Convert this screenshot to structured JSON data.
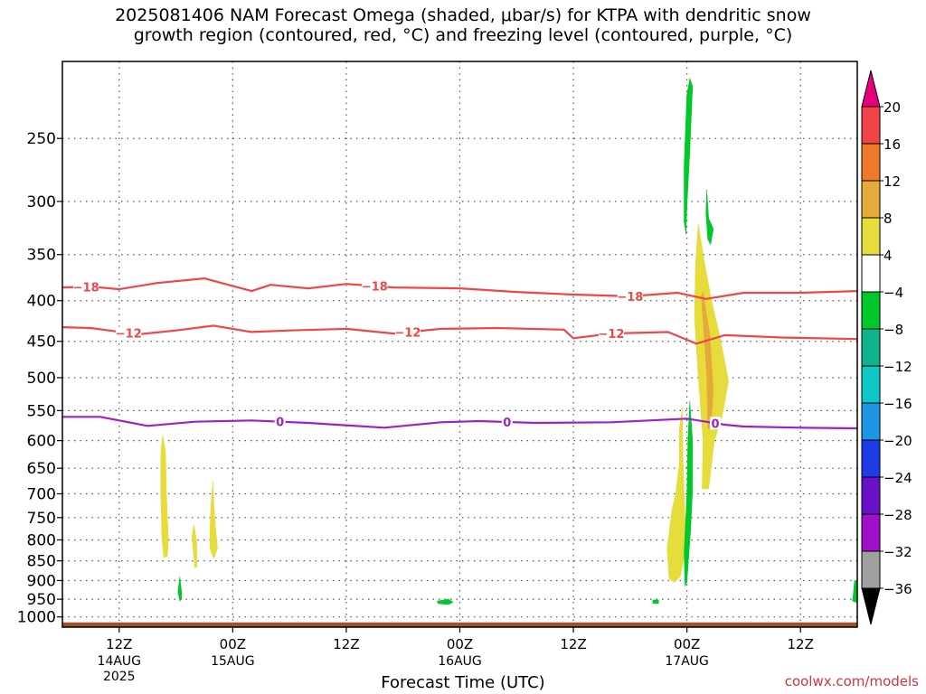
{
  "title": {
    "line1": "2025081406 NAM Forecast Omega (shaded, μbar/s) for KTPA with dendritic snow",
    "line2": "growth region (contoured, red, °C) and freezing level (contoured, purple, °C)"
  },
  "credit": "coolwx.com/models",
  "chart_data": {
    "type": "heatmap",
    "xlabel": "Forecast Time (UTC)",
    "x_unit": "forecast hour from 2025-08-14 06Z",
    "xlim": [
      0,
      84
    ],
    "x_ticks": [
      {
        "hour": 6,
        "label": "12Z",
        "sub": "14AUG",
        "sub2": "2025"
      },
      {
        "hour": 18,
        "label": "00Z",
        "sub": "15AUG",
        "sub2": ""
      },
      {
        "hour": 30,
        "label": "12Z",
        "sub": "",
        "sub2": ""
      },
      {
        "hour": 42,
        "label": "00Z",
        "sub": "16AUG",
        "sub2": ""
      },
      {
        "hour": 54,
        "label": "12Z",
        "sub": "",
        "sub2": ""
      },
      {
        "hour": 66,
        "label": "00Z",
        "sub": "17AUG",
        "sub2": ""
      },
      {
        "hour": 78,
        "label": "12Z",
        "sub": "",
        "sub2": ""
      }
    ],
    "ylabel": "",
    "y_unit": "hPa",
    "y_scale": "log",
    "ylim": [
      1030,
      200
    ],
    "y_ticks": [
      250,
      300,
      350,
      400,
      450,
      500,
      550,
      600,
      650,
      700,
      750,
      800,
      850,
      900,
      950,
      1000
    ],
    "grid": true,
    "colorbar": {
      "levels": [
        "20",
        "16",
        "12",
        "8",
        "4",
        "−4",
        "−8",
        "−12",
        "−16",
        "−20",
        "−24",
        "−28",
        "−32",
        "−36"
      ],
      "colors": [
        "#e6007e",
        "#f2424a",
        "#f07a2a",
        "#e6aa3a",
        "#e6dc3c",
        "#ffffff",
        "#00c82a",
        "#10b48c",
        "#0ec8c8",
        "#1e96e6",
        "#1e3ce6",
        "#6a10c8",
        "#a010c8",
        "#a0a0a0",
        "#000000"
      ]
    },
    "contours": [
      {
        "color": "#f04646",
        "label": "−18",
        "label_x": [
          2.5,
          33,
          60
        ],
        "points": [
          [
            0,
            385
          ],
          [
            3,
            384
          ],
          [
            6,
            387
          ],
          [
            10,
            380
          ],
          [
            15,
            375
          ],
          [
            20,
            389
          ],
          [
            22,
            382
          ],
          [
            26,
            386
          ],
          [
            30,
            381
          ],
          [
            35,
            385
          ],
          [
            42,
            386
          ],
          [
            48,
            390
          ],
          [
            54,
            393
          ],
          [
            60,
            395
          ],
          [
            65,
            391
          ],
          [
            68,
            398
          ],
          [
            72,
            391
          ],
          [
            78,
            391
          ],
          [
            84,
            389
          ]
        ]
      },
      {
        "color": "#f04646",
        "label": "−12",
        "label_x": [
          7,
          36.5,
          58
        ],
        "points": [
          [
            0,
            432
          ],
          [
            3,
            433
          ],
          [
            8,
            441
          ],
          [
            12,
            436
          ],
          [
            16,
            430
          ],
          [
            20,
            438
          ],
          [
            24,
            436
          ],
          [
            30,
            434
          ],
          [
            35,
            440
          ],
          [
            40,
            434
          ],
          [
            46,
            433
          ],
          [
            53,
            435
          ],
          [
            54,
            446
          ],
          [
            58,
            440
          ],
          [
            64,
            438
          ],
          [
            67,
            453
          ],
          [
            70,
            442
          ],
          [
            76,
            445
          ],
          [
            84,
            447
          ]
        ]
      },
      {
        "color": "#a020c8",
        "label": "0",
        "label_x": [
          23,
          47,
          69
        ],
        "points": [
          [
            0,
            560
          ],
          [
            4,
            560
          ],
          [
            9,
            575
          ],
          [
            14,
            568
          ],
          [
            20,
            566
          ],
          [
            26,
            570
          ],
          [
            34,
            578
          ],
          [
            40,
            569
          ],
          [
            44,
            567
          ],
          [
            50,
            570
          ],
          [
            58,
            569
          ],
          [
            66,
            563
          ],
          [
            70,
            573
          ],
          [
            72,
            576
          ],
          [
            78,
            578
          ],
          [
            84,
            579
          ]
        ]
      }
    ],
    "shaded_regions": [
      {
        "color": "#e6dc3c",
        "points": [
          [
            10.6,
            590
          ],
          [
            10.9,
            620
          ],
          [
            11.0,
            700
          ],
          [
            11.2,
            795
          ],
          [
            11.1,
            838
          ],
          [
            10.7,
            842
          ],
          [
            10.5,
            790
          ],
          [
            10.4,
            700
          ],
          [
            10.4,
            620
          ]
        ]
      },
      {
        "color": "#e6dc3c",
        "points": [
          [
            13.9,
            765
          ],
          [
            14.2,
            805
          ],
          [
            14.2,
            865
          ],
          [
            14.0,
            868
          ],
          [
            13.8,
            820
          ],
          [
            13.7,
            790
          ]
        ]
      },
      {
        "color": "#e6dc3c",
        "points": [
          [
            15.9,
            675
          ],
          [
            16.0,
            720
          ],
          [
            16.2,
            775
          ],
          [
            16.4,
            820
          ],
          [
            16.0,
            845
          ],
          [
            15.6,
            820
          ],
          [
            15.6,
            775
          ],
          [
            15.7,
            720
          ]
        ]
      },
      {
        "color": "#e6dc3c",
        "points": [
          [
            65.5,
            545
          ],
          [
            65.6,
            640
          ],
          [
            65.9,
            820
          ],
          [
            65.3,
            890
          ],
          [
            64.7,
            905
          ],
          [
            64.1,
            895
          ],
          [
            63.9,
            820
          ],
          [
            64.4,
            735
          ],
          [
            64.8,
            700
          ],
          [
            65.2,
            640
          ],
          [
            65.2,
            580
          ]
        ]
      },
      {
        "color": "#e6dc3c",
        "points": [
          [
            67.2,
            320
          ],
          [
            67.8,
            355
          ],
          [
            68.6,
            400
          ],
          [
            69.5,
            445
          ],
          [
            70.4,
            505
          ],
          [
            69.7,
            560
          ],
          [
            68.9,
            600
          ],
          [
            68.3,
            690
          ],
          [
            67.6,
            690
          ],
          [
            67.7,
            600
          ],
          [
            67.2,
            500
          ],
          [
            66.8,
            420
          ],
          [
            66.9,
            360
          ]
        ]
      },
      {
        "color": "#e6aa3a",
        "points": [
          [
            67.7,
            390
          ],
          [
            68.4,
            440
          ],
          [
            68.8,
            520
          ],
          [
            68.5,
            580
          ],
          [
            68.2,
            580
          ],
          [
            68.1,
            500
          ],
          [
            67.8,
            440
          ],
          [
            67.5,
            395
          ]
        ]
      },
      {
        "color": "#00c82a",
        "points": [
          [
            66.3,
            210
          ],
          [
            66.6,
            215
          ],
          [
            66.3,
            260
          ],
          [
            66.0,
            305
          ],
          [
            65.9,
            330
          ],
          [
            65.7,
            318
          ],
          [
            65.7,
            270
          ],
          [
            66.0,
            220
          ]
        ]
      },
      {
        "color": "#00c82a",
        "points": [
          [
            68.1,
            290
          ],
          [
            68.3,
            315
          ],
          [
            68.8,
            325
          ],
          [
            68.5,
            340
          ],
          [
            68.2,
            335
          ],
          [
            68.0,
            310
          ]
        ]
      },
      {
        "color": "#00c82a",
        "points": [
          [
            66.3,
            535
          ],
          [
            66.6,
            600
          ],
          [
            66.6,
            690
          ],
          [
            66.4,
            775
          ],
          [
            66.0,
            905
          ],
          [
            65.8,
            915
          ],
          [
            65.7,
            830
          ],
          [
            66.0,
            700
          ],
          [
            66.1,
            600
          ]
        ]
      },
      {
        "color": "#00c82a",
        "points": [
          [
            12.4,
            890
          ],
          [
            12.6,
            930
          ],
          [
            12.6,
            950
          ],
          [
            12.4,
            955
          ],
          [
            12.2,
            930
          ]
        ]
      },
      {
        "color": "#00c82a",
        "points": [
          [
            39.6,
            955
          ],
          [
            40.8,
            950
          ],
          [
            41.3,
            958
          ],
          [
            40.8,
            965
          ],
          [
            39.7,
            962
          ]
        ]
      },
      {
        "color": "#00c82a",
        "points": [
          [
            62.4,
            952
          ],
          [
            63.0,
            952
          ],
          [
            63.0,
            962
          ],
          [
            62.4,
            962
          ]
        ]
      },
      {
        "color": "#00c82a",
        "points": [
          [
            83.7,
            900
          ],
          [
            84,
            900
          ],
          [
            84,
            960
          ],
          [
            83.5,
            955
          ],
          [
            83.6,
            930
          ]
        ]
      }
    ],
    "ground": {
      "color": "#a0522d",
      "top_hPa": 1016
    }
  }
}
